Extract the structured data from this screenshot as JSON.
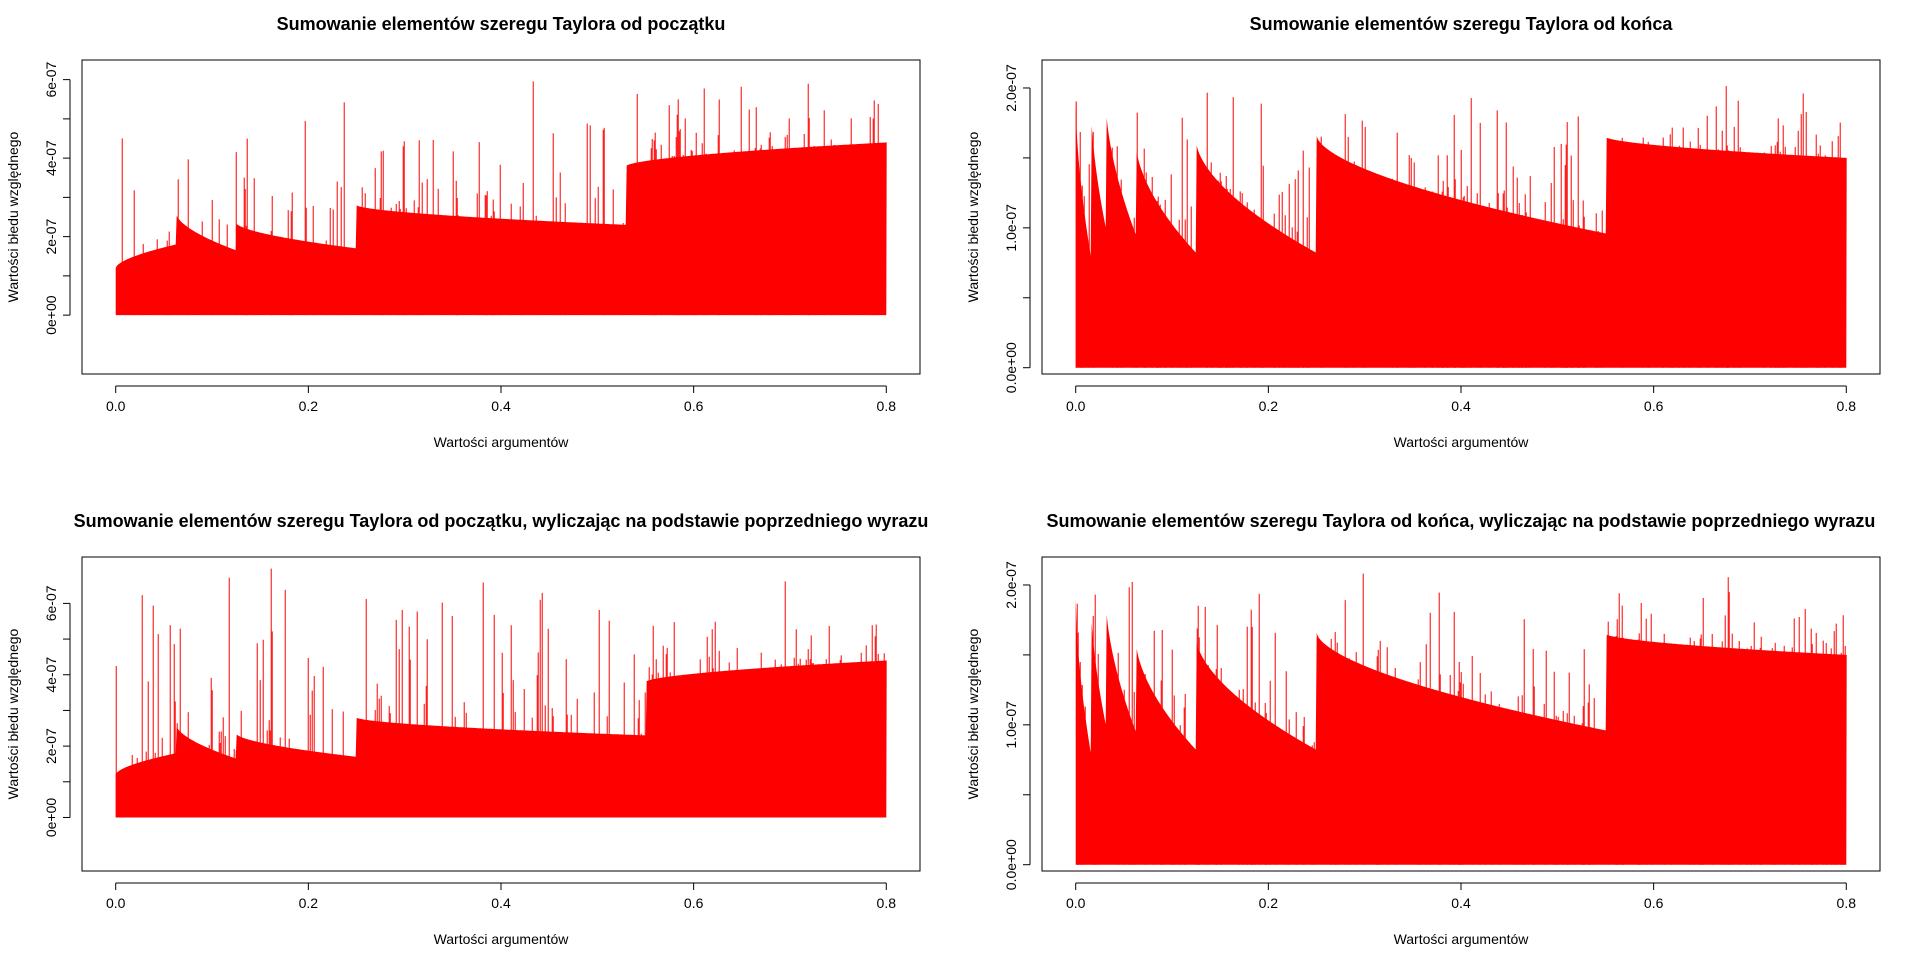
{
  "colors": {
    "bar": "#ff0000",
    "axis": "#000000",
    "background": "#ffffff"
  },
  "chart_data": [
    {
      "type": "bar",
      "title": "Sumowanie elementów szeregu Taylora od początku",
      "xlabel": "Wartości argumentów",
      "ylabel": "Wartości błedu względnego",
      "xlim": [
        -0.035,
        0.835
      ],
      "ylim": [
        -1.5e-07,
        6.5e-07
      ],
      "x_ticks": [
        0.0,
        0.2,
        0.4,
        0.6,
        0.8
      ],
      "x_tick_labels": [
        "0.0",
        "0.2",
        "0.4",
        "0.6",
        "0.8"
      ],
      "y_ticks": [
        0,
        2e-07,
        4e-07,
        6e-07
      ],
      "y_tick_labels": [
        "0e+00",
        "2e-07",
        "4e-07",
        "6e-07"
      ],
      "x_range": [
        0.0,
        0.8
      ],
      "envelope": [
        {
          "x": [
            0.0,
            0.0625
          ],
          "y": [
            1.2e-07,
            1.8e-07
          ]
        },
        {
          "x": [
            0.0625,
            0.125
          ],
          "y": [
            2.6e-07,
            1.65e-07
          ]
        },
        {
          "x": [
            0.125,
            0.25
          ],
          "y": [
            2.35e-07,
            1.7e-07
          ]
        },
        {
          "x": [
            0.25,
            0.53
          ],
          "y": [
            2.8e-07,
            2.3e-07
          ]
        },
        {
          "x": [
            0.53,
            0.8
          ],
          "y": [
            3.8e-07,
            4.4e-07
          ]
        }
      ],
      "peak_max": 6.4e-07
    },
    {
      "type": "bar",
      "title": "Sumowanie elementów szeregu Taylora od końca",
      "xlabel": "Wartości argumentów",
      "ylabel": "Wartości błedu względnego",
      "xlim": [
        -0.035,
        0.835
      ],
      "ylim": [
        -4.5e-09,
        2.2e-07
      ],
      "x_ticks": [
        0.0,
        0.2,
        0.4,
        0.6,
        0.8
      ],
      "x_tick_labels": [
        "0.0",
        "0.2",
        "0.4",
        "0.6",
        "0.8"
      ],
      "y_ticks": [
        0,
        1e-07,
        2e-07
      ],
      "y_tick_labels": [
        "0.0e+00",
        "1.0e-07",
        "2.0e-07"
      ],
      "x_range": [
        0.0,
        0.8
      ],
      "envelope": [
        {
          "x": [
            0.0,
            0.015625
          ],
          "y": [
            1.9e-07,
            8e-08
          ]
        },
        {
          "x": [
            0.015625,
            0.03125
          ],
          "y": [
            1.9e-07,
            1e-07
          ]
        },
        {
          "x": [
            0.03125,
            0.0625
          ],
          "y": [
            1.9e-07,
            9.5e-08
          ]
        },
        {
          "x": [
            0.0625,
            0.125
          ],
          "y": [
            1.6e-07,
            8.2e-08
          ]
        },
        {
          "x": [
            0.125,
            0.25
          ],
          "y": [
            1.62e-07,
            8.2e-08
          ]
        },
        {
          "x": [
            0.25,
            0.55
          ],
          "y": [
            1.66e-07,
            9.6e-08
          ]
        },
        {
          "x": [
            0.55,
            0.8
          ],
          "y": [
            1.65e-07,
            1.5e-07
          ]
        }
      ],
      "peak_max": 2.1e-07
    },
    {
      "type": "bar",
      "title": "Sumowanie elementów szeregu Taylora od początku, wyliczając na podstawie poprzedniego wyrazu",
      "xlabel": "Wartości argumentów",
      "ylabel": "Wartości błedu względnego",
      "xlim": [
        -0.035,
        0.835
      ],
      "ylim": [
        -1.5e-07,
        7.3e-07
      ],
      "x_ticks": [
        0.0,
        0.2,
        0.4,
        0.6,
        0.8
      ],
      "x_tick_labels": [
        "0.0",
        "0.2",
        "0.4",
        "0.6",
        "0.8"
      ],
      "y_ticks": [
        0,
        2e-07,
        4e-07,
        6e-07
      ],
      "y_tick_labels": [
        "0e+00",
        "2e-07",
        "4e-07",
        "6e-07"
      ],
      "x_range": [
        0.0,
        0.8
      ],
      "envelope": [
        {
          "x": [
            0.0,
            0.0625
          ],
          "y": [
            1.2e-07,
            1.8e-07
          ]
        },
        {
          "x": [
            0.0625,
            0.125
          ],
          "y": [
            2.6e-07,
            1.65e-07
          ]
        },
        {
          "x": [
            0.125,
            0.25
          ],
          "y": [
            2.35e-07,
            1.7e-07
          ]
        },
        {
          "x": [
            0.25,
            0.55
          ],
          "y": [
            2.8e-07,
            2.3e-07
          ]
        },
        {
          "x": [
            0.55,
            0.8
          ],
          "y": [
            3.8e-07,
            4.4e-07
          ]
        }
      ],
      "peak_max": 7.2e-07
    },
    {
      "type": "bar",
      "title": "Sumowanie elementów szeregu Taylora od końca, wyliczając na podstawie poprzedniego wyrazu",
      "xlabel": "Wartości argumentów",
      "ylabel": "Wartości błedu względnego",
      "xlim": [
        -0.035,
        0.835
      ],
      "ylim": [
        -4.5e-09,
        2.2e-07
      ],
      "x_ticks": [
        0.0,
        0.2,
        0.4,
        0.6,
        0.8
      ],
      "x_tick_labels": [
        "0.0",
        "0.2",
        "0.4",
        "0.6",
        "0.8"
      ],
      "y_ticks": [
        0,
        1e-07,
        2e-07
      ],
      "y_tick_labels": [
        "0.0e+00",
        "1.0e-07",
        "2.0e-07"
      ],
      "x_range": [
        0.0,
        0.8
      ],
      "envelope": [
        {
          "x": [
            0.0,
            0.015625
          ],
          "y": [
            1.9e-07,
            8e-08
          ]
        },
        {
          "x": [
            0.015625,
            0.03125
          ],
          "y": [
            1.9e-07,
            1e-07
          ]
        },
        {
          "x": [
            0.03125,
            0.0625
          ],
          "y": [
            1.9e-07,
            9.5e-08
          ]
        },
        {
          "x": [
            0.0625,
            0.125
          ],
          "y": [
            1.6e-07,
            8.2e-08
          ]
        },
        {
          "x": [
            0.125,
            0.25
          ],
          "y": [
            1.62e-07,
            8.2e-08
          ]
        },
        {
          "x": [
            0.25,
            0.55
          ],
          "y": [
            1.66e-07,
            9.6e-08
          ]
        },
        {
          "x": [
            0.55,
            0.8
          ],
          "y": [
            1.65e-07,
            1.5e-07
          ]
        }
      ],
      "peak_max": 2.15e-07
    }
  ]
}
